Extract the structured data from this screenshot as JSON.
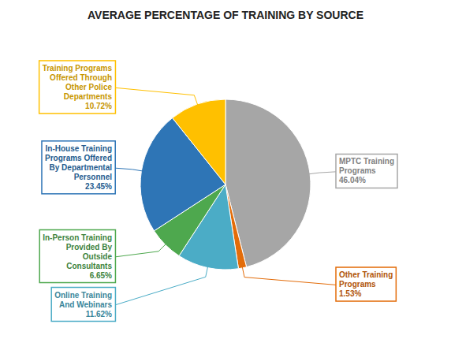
{
  "chart_data": {
    "type": "pie",
    "title": "AVERAGE PERCENTAGE OF TRAINING BY SOURCE",
    "categories": [
      "MPTC Training\nPrograms",
      "Other Training\nPrograms",
      "Online Training\nAnd Webinars",
      "In-Person Training\nProvided By\nOutside\nConsultants",
      "In-House Training\nPrograms Offered\nBy Departmental\nPersonnel",
      "Training Programs\nOffered Through\nOther Police\nDepartments"
    ],
    "values": [
      46.04,
      1.53,
      11.62,
      6.65,
      23.45,
      10.72
    ],
    "value_labels": [
      "46.04%",
      "1.53%",
      "11.62%",
      "6.65%",
      "23.45%",
      "10.72%"
    ],
    "data_labels": true,
    "colors": [
      "#a6a6a6",
      "#e36c09",
      "#4bacc6",
      "#4ea84e",
      "#2e75b6",
      "#ffc000"
    ]
  }
}
